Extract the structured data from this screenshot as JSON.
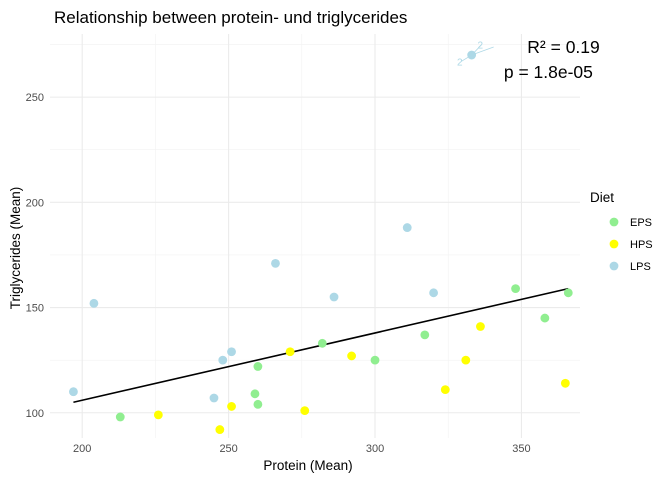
{
  "chart_data": {
    "type": "scatter",
    "title": "Relationship between protein- und triglycerides",
    "xlabel": "Protein (Mean)",
    "ylabel": "Triglycerides (Mean)",
    "xlim": [
      189,
      370
    ],
    "ylim": [
      88,
      280
    ],
    "xticks": [
      200,
      250,
      300,
      350
    ],
    "yticks": [
      100,
      150,
      200,
      250
    ],
    "grid": true,
    "legend": {
      "title": "Diet",
      "placement": "right",
      "entries": [
        {
          "name": "EPS",
          "color": "#90EE90"
        },
        {
          "name": "HPS",
          "color": "#FFFF00"
        },
        {
          "name": "LPS",
          "color": "#ADD8E6"
        }
      ]
    },
    "series": [
      {
        "name": "EPS",
        "color": "#90EE90",
        "points": [
          [
            213,
            98
          ],
          [
            259,
            109
          ],
          [
            260,
            104
          ],
          [
            260,
            122
          ],
          [
            282,
            133
          ],
          [
            300,
            125
          ],
          [
            317,
            137
          ],
          [
            348,
            159
          ],
          [
            358,
            145
          ],
          [
            366,
            157
          ]
        ]
      },
      {
        "name": "HPS",
        "color": "#FFFF00",
        "points": [
          [
            226,
            99
          ],
          [
            247,
            92
          ],
          [
            251,
            103
          ],
          [
            271,
            129
          ],
          [
            276,
            101
          ],
          [
            292,
            127
          ],
          [
            324,
            111
          ],
          [
            331,
            125
          ],
          [
            336,
            141
          ],
          [
            365,
            114
          ]
        ]
      },
      {
        "name": "LPS",
        "color": "#ADD8E6",
        "points": [
          [
            197,
            110
          ],
          [
            204,
            152
          ],
          [
            245,
            107
          ],
          [
            248,
            125
          ],
          [
            251,
            129
          ],
          [
            266,
            171
          ],
          [
            286,
            155
          ],
          [
            311,
            188
          ],
          [
            320,
            157
          ],
          [
            333,
            270
          ]
        ]
      }
    ],
    "regression": {
      "color": "#000000",
      "x": [
        197,
        366
      ],
      "y": [
        105,
        159
      ]
    },
    "annotations": [
      {
        "text": "R² = 0.19",
        "x": 352,
        "y": 271
      },
      {
        "text": "p = 1.8e-05",
        "x": 344,
        "y": 259
      }
    ],
    "point_labels": [
      {
        "text": "2",
        "x": 328,
        "y": 265
      },
      {
        "text": "2",
        "x": 335,
        "y": 273
      }
    ]
  }
}
